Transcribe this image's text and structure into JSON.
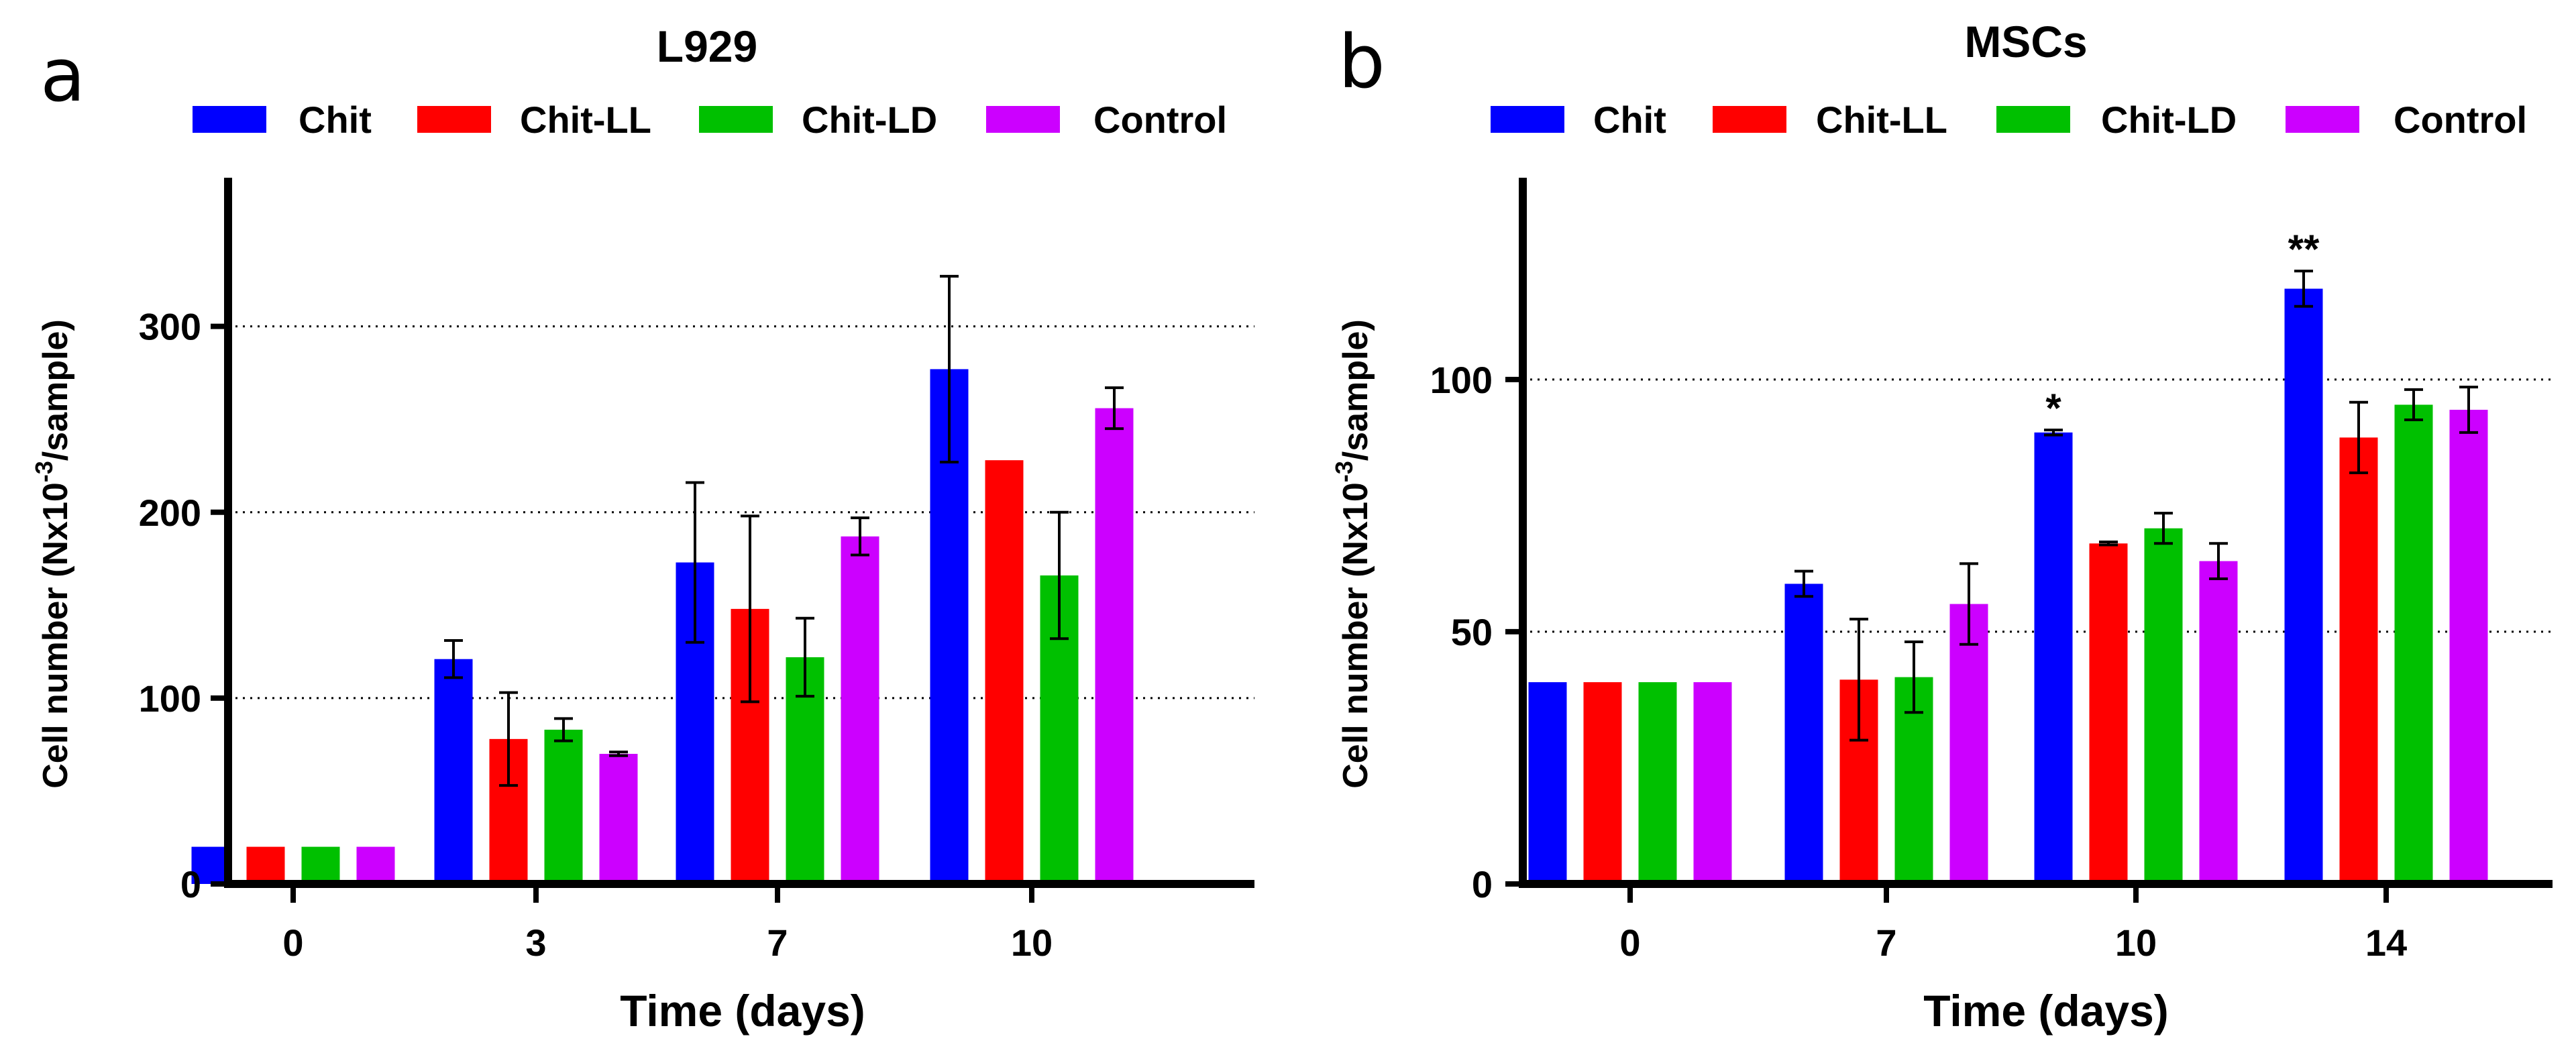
{
  "figure": {
    "panels": [
      "a",
      "b"
    ]
  },
  "chart_data": [
    {
      "type": "bar",
      "panel_label": "a",
      "title": "L929",
      "xlabel": "Time (days)",
      "ylabel_main": "Cell number (Nx10",
      "ylabel_sup": "-3",
      "ylabel_tail": "/sample)",
      "categories": [
        "0",
        "3",
        "7",
        "10"
      ],
      "ylim": [
        0,
        380
      ],
      "yticks": [
        0,
        100,
        200,
        300
      ],
      "gridlines": [
        100,
        200,
        300
      ],
      "legend_position": "top",
      "series": [
        {
          "name": "Chit",
          "color": "#0000ff",
          "values": [
            20,
            121,
            173,
            277
          ],
          "errors": [
            0,
            10,
            43,
            50
          ]
        },
        {
          "name": "Chit-LL",
          "color": "#ff0000",
          "values": [
            20,
            78,
            148,
            228
          ],
          "errors": [
            0,
            25,
            50,
            0
          ]
        },
        {
          "name": "Chit-LD",
          "color": "#00c000",
          "values": [
            20,
            83,
            122,
            166
          ],
          "errors": [
            0,
            6,
            21,
            34
          ]
        },
        {
          "name": "Control",
          "color": "#cc00ff",
          "values": [
            20,
            70,
            187,
            256
          ],
          "errors": [
            0,
            1,
            10,
            11
          ]
        }
      ],
      "annotations": []
    },
    {
      "type": "bar",
      "panel_label": "b",
      "title": "MSCs",
      "xlabel": "Time (days)",
      "ylabel_main": "Cell number (Nx10",
      "ylabel_sup": "-3",
      "ylabel_tail": "/sample)",
      "categories": [
        "0",
        "7",
        "10",
        "14"
      ],
      "ylim": [
        0,
        140
      ],
      "yticks": [
        0,
        50,
        100
      ],
      "gridlines": [
        50,
        100
      ],
      "legend_position": "top",
      "series": [
        {
          "name": "Chit",
          "color": "#0000ff",
          "values": [
            40,
            59.5,
            89.5,
            118
          ],
          "errors": [
            0,
            2.5,
            0.5,
            3.5
          ]
        },
        {
          "name": "Chit-LL",
          "color": "#ff0000",
          "values": [
            40,
            40.5,
            67.5,
            88.5
          ],
          "errors": [
            0,
            12,
            0.3,
            7
          ]
        },
        {
          "name": "Chit-LD",
          "color": "#00c000",
          "values": [
            40,
            41,
            70.5,
            95
          ],
          "errors": [
            0,
            7,
            3,
            3
          ]
        },
        {
          "name": "Control",
          "color": "#cc00ff",
          "values": [
            40,
            55.5,
            64,
            94
          ],
          "errors": [
            0,
            8,
            3.5,
            4.5
          ]
        }
      ],
      "annotations": [
        {
          "text": "*",
          "category": "10",
          "series": "Chit"
        },
        {
          "text": "**",
          "category": "14",
          "series": "Chit"
        }
      ]
    }
  ]
}
